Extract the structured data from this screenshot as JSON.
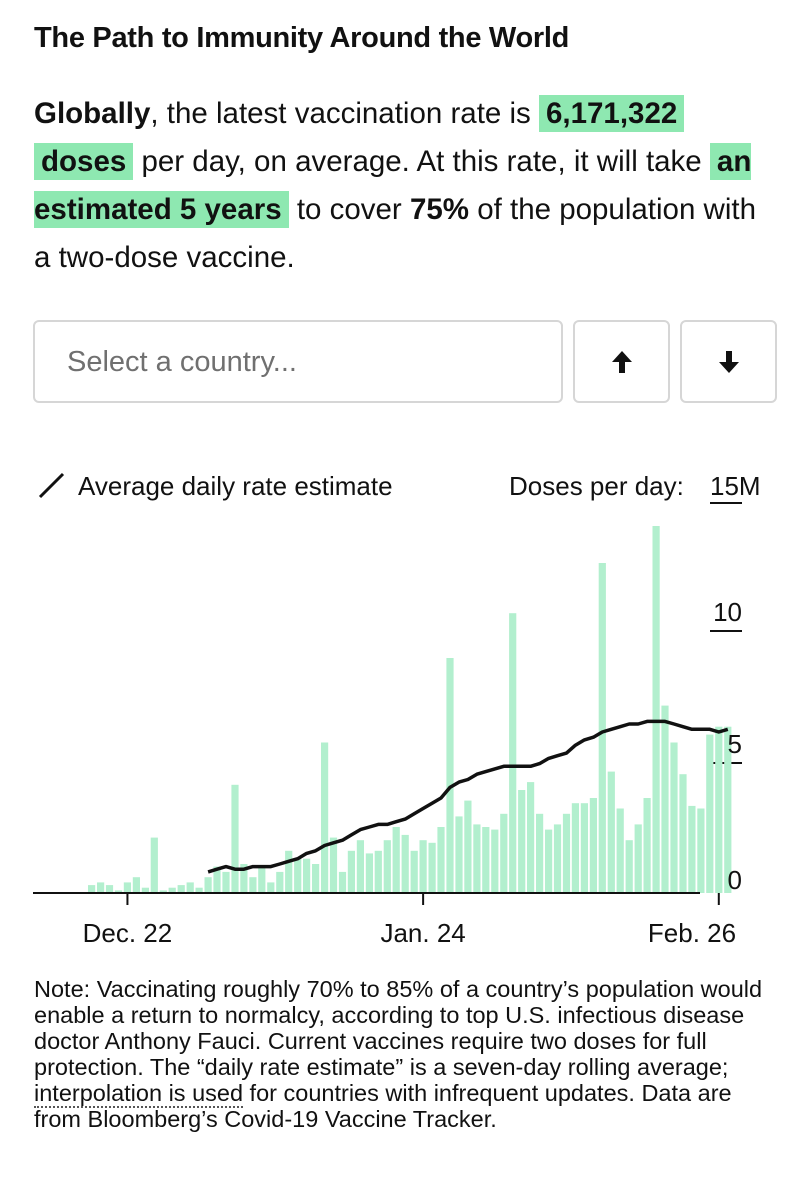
{
  "title": "The Path to Immunity Around the World",
  "lede": {
    "scope": "Globally",
    "t1": ", the latest vaccination rate is ",
    "doses_number": "6,171,322",
    "doses_word": "doses",
    "t2": " per day, on average. At this rate, it will take ",
    "estimate": "an estimated 5 years",
    "t3": " to cover ",
    "coverage": "75%",
    "t4": " of the population with a two-dose vaccine."
  },
  "controls": {
    "select_placeholder": "Select a country...",
    "up_icon": "arrow-up-icon",
    "down_icon": "arrow-down-icon"
  },
  "colors": {
    "bars": "#b2efce",
    "line": "#111111",
    "highlight": "#8ee8b1"
  },
  "chart_data": {
    "type": "bar",
    "legend": "Average daily rate estimate",
    "ylabel": "Doses per day:",
    "y_tick_labels": [
      "0",
      "5",
      "10",
      "15M"
    ],
    "y_ticks": [
      0,
      5,
      10,
      15
    ],
    "ylim": [
      0,
      15
    ],
    "x_tick_labels": [
      "Dec. 22",
      "Jan. 24",
      "Feb. 26"
    ],
    "x_tick_indices": [
      4,
      37,
      70
    ],
    "unit": "million doses per day",
    "series": [
      {
        "type": "bar",
        "values": [
          0.3,
          0.4,
          0.3,
          0.1,
          0.4,
          0.6,
          0.2,
          2.1,
          0.1,
          0.2,
          0.3,
          0.4,
          0.2,
          0.6,
          1.0,
          0.8,
          4.1,
          1.1,
          0.6,
          1.0,
          0.4,
          0.8,
          1.6,
          1.3,
          1.3,
          1.1,
          5.7,
          2.1,
          0.8,
          1.6,
          2.0,
          1.5,
          1.6,
          2.0,
          2.5,
          2.2,
          1.6,
          2.0,
          1.9,
          2.5,
          8.9,
          2.9,
          3.5,
          2.6,
          2.5,
          2.4,
          3.0,
          10.6,
          3.9,
          4.2,
          3.0,
          2.4,
          2.6,
          3.0,
          3.4,
          3.4,
          3.6,
          12.5,
          4.6,
          3.2,
          2.0,
          2.6,
          3.6,
          13.9,
          7.1,
          5.7,
          4.5,
          3.3,
          3.2,
          6.0,
          6.3,
          6.3
        ]
      },
      {
        "type": "line",
        "name": "Average daily rate estimate",
        "values": [
          null,
          null,
          null,
          null,
          null,
          null,
          null,
          null,
          null,
          null,
          null,
          null,
          null,
          0.8,
          0.9,
          1.0,
          0.9,
          0.9,
          1.0,
          1.0,
          1.0,
          1.1,
          1.2,
          1.3,
          1.5,
          1.6,
          1.8,
          1.9,
          2.0,
          2.2,
          2.4,
          2.5,
          2.6,
          2.6,
          2.7,
          2.8,
          3.0,
          3.2,
          3.4,
          3.6,
          4.0,
          4.2,
          4.3,
          4.5,
          4.6,
          4.7,
          4.8,
          4.8,
          4.8,
          4.8,
          4.9,
          5.1,
          5.2,
          5.3,
          5.6,
          5.8,
          5.9,
          6.1,
          6.2,
          6.3,
          6.4,
          6.4,
          6.5,
          6.5,
          6.5,
          6.4,
          6.3,
          6.2,
          6.2,
          6.2,
          6.1,
          6.2
        ]
      }
    ]
  },
  "note": {
    "t1": "Note: Vaccinating roughly 70% to 85% of a country’s population would enable a return to normalcy, according to top U.S. infectious disease doctor Anthony Fauci. Current vaccines require two doses for full protection. The “daily rate estimate” is a seven-day rolling average; ",
    "link": "interpolation is used",
    "t2": " for countries with infrequent updates. Data are from Bloomberg’s Covid-19 Vaccine Tracker."
  }
}
